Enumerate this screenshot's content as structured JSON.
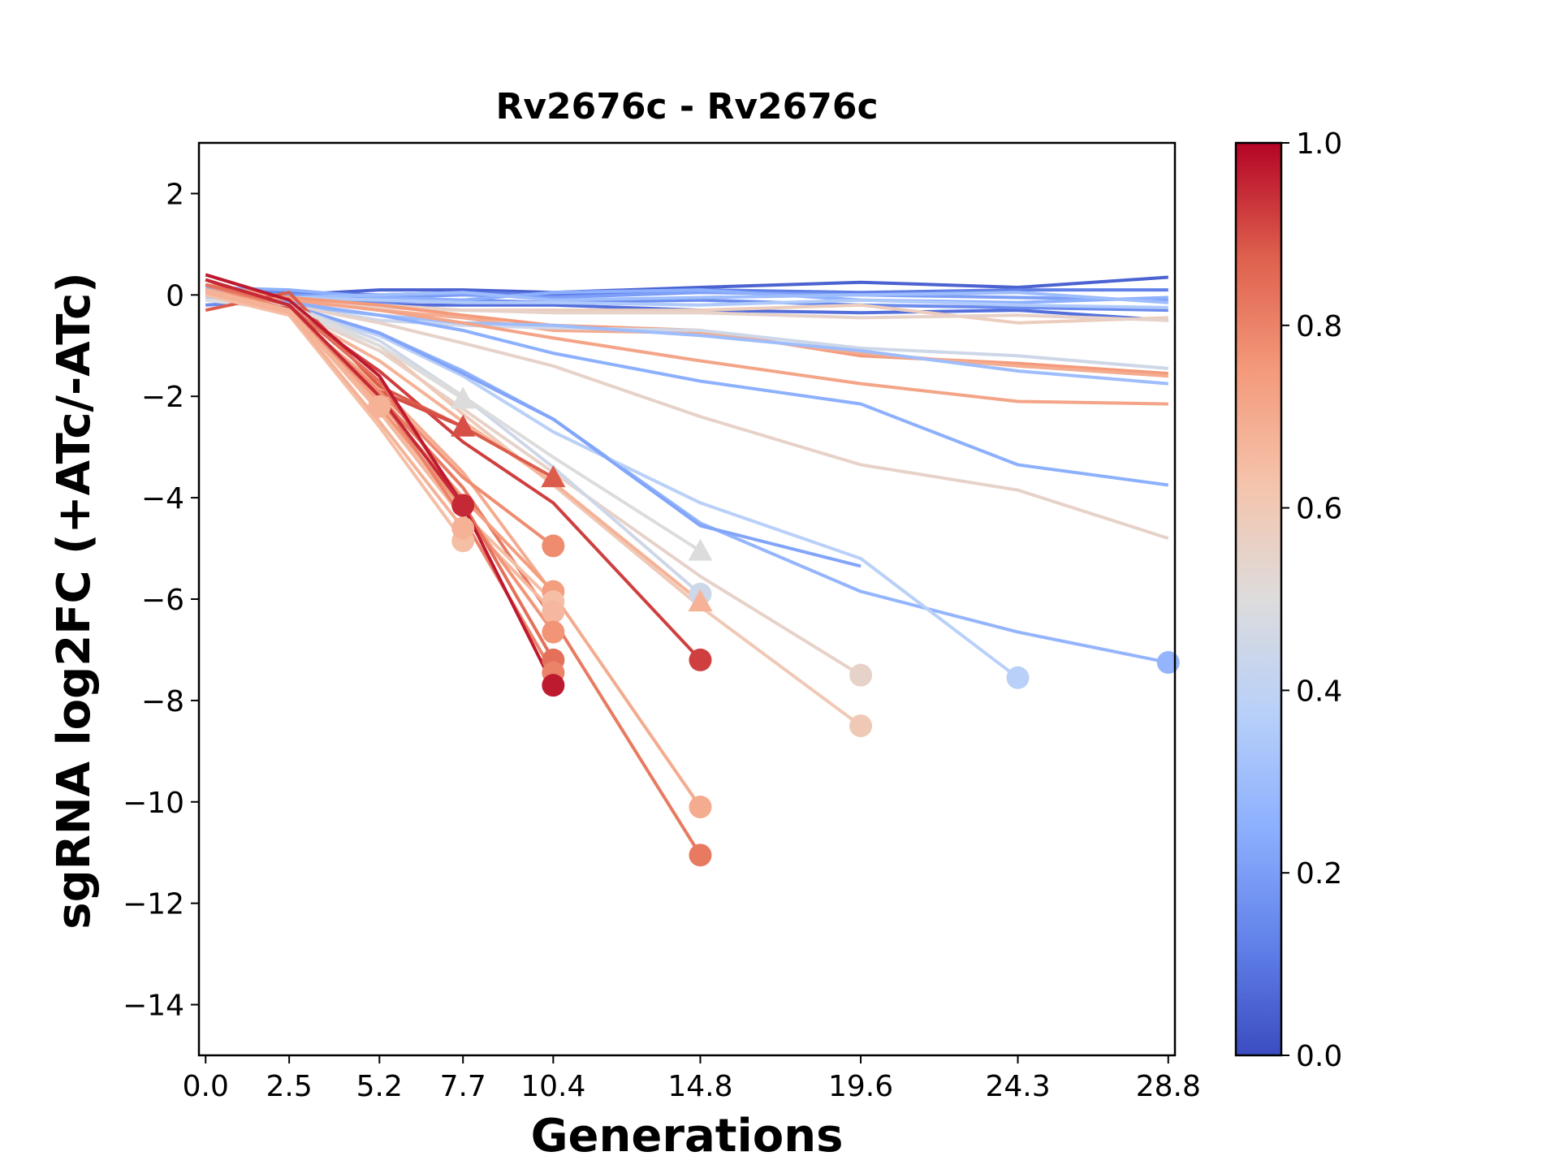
{
  "chart_data": {
    "type": "line",
    "title": "Rv2676c - Rv2676c",
    "xlabel": "Generations",
    "ylabel": "sgRNA log2FC (+ATc/-ATc)",
    "x_ticks": [
      0.0,
      2.5,
      5.2,
      7.7,
      10.4,
      14.8,
      19.6,
      24.3,
      28.8
    ],
    "x_tick_labels": [
      "0.0",
      "2.5",
      "5.2",
      "7.7",
      "10.4",
      "14.8",
      "19.6",
      "24.3",
      "28.8"
    ],
    "xlim": [
      -0.2,
      29.0
    ],
    "y_ticks": [
      2,
      0,
      -2,
      -4,
      -6,
      -8,
      -10,
      -12,
      -14
    ],
    "y_tick_labels": [
      "2",
      "0",
      "−2",
      "−4",
      "−6",
      "−8",
      "−10",
      "−12",
      "−14"
    ],
    "ylim": [
      -15,
      3
    ],
    "grid": false,
    "colorbar": {
      "colormap": "coolwarm",
      "range": [
        0.0,
        1.0
      ],
      "ticks": [
        0.0,
        0.2,
        0.4,
        0.6,
        0.8,
        1.0
      ],
      "tick_labels": [
        "0.0",
        "0.2",
        "0.4",
        "0.6",
        "0.8",
        "1.0"
      ]
    },
    "colormap_stops": [
      "#3b4cc0",
      "#6282ea",
      "#8db0fe",
      "#b8d0f9",
      "#dddcdc",
      "#f5c4ac",
      "#f49a7b",
      "#de604d",
      "#b40426"
    ],
    "series": [
      {
        "c": 0.05,
        "x": [
          0.0,
          2.5,
          5.2,
          7.7,
          10.4,
          14.8,
          19.6,
          24.3,
          28.8
        ],
        "y": [
          0.0,
          0.0,
          0.1,
          0.1,
          0.05,
          0.15,
          0.25,
          0.15,
          0.35
        ],
        "end": "none"
      },
      {
        "c": 0.08,
        "x": [
          0.0,
          2.5,
          5.2,
          7.7,
          10.4,
          14.8,
          19.6,
          24.3,
          28.8
        ],
        "y": [
          -0.1,
          -0.1,
          -0.2,
          -0.2,
          -0.2,
          -0.3,
          -0.35,
          -0.3,
          -0.5
        ],
        "end": "none"
      },
      {
        "c": 0.12,
        "x": [
          0.0,
          2.5,
          5.2,
          7.7,
          10.4,
          14.8,
          19.6,
          24.3,
          28.8
        ],
        "y": [
          0.1,
          0.05,
          0.0,
          0.05,
          0.0,
          0.1,
          0.05,
          0.1,
          0.1
        ],
        "end": "none"
      },
      {
        "c": 0.15,
        "x": [
          0.0,
          2.5,
          5.2,
          7.7,
          10.4,
          14.8,
          19.6,
          24.3,
          28.8
        ],
        "y": [
          -0.2,
          -0.1,
          -0.15,
          -0.1,
          -0.15,
          -0.1,
          -0.2,
          -0.25,
          -0.3
        ],
        "end": "none"
      },
      {
        "c": 0.2,
        "x": [
          0.0,
          2.5,
          5.2,
          7.7,
          10.4,
          14.8,
          19.6,
          24.3,
          28.8
        ],
        "y": [
          0.05,
          0.0,
          -0.05,
          0.0,
          -0.05,
          0.05,
          0.0,
          -0.05,
          -0.1
        ],
        "end": "none"
      },
      {
        "c": 0.25,
        "x": [
          0.0,
          2.5,
          5.2,
          7.7,
          10.4,
          14.8,
          19.6,
          24.3,
          28.8
        ],
        "y": [
          0.15,
          0.1,
          -0.05,
          -0.1,
          0.05,
          0.1,
          -0.1,
          -0.15,
          -0.05
        ],
        "end": "none"
      },
      {
        "c": 0.3,
        "x": [
          0.0,
          2.5,
          5.2,
          7.7,
          10.4,
          14.8,
          19.6,
          24.3,
          28.8
        ],
        "y": [
          0.0,
          -0.05,
          0.0,
          0.05,
          -0.1,
          -0.05,
          0.0,
          0.05,
          -0.15
        ],
        "end": "none"
      },
      {
        "c": 0.35,
        "x": [
          0.0,
          2.5,
          5.2,
          7.7,
          10.4,
          14.8,
          19.6,
          24.3,
          28.8
        ],
        "y": [
          -0.05,
          -0.05,
          -0.1,
          -0.15,
          -0.15,
          -0.2,
          -0.1,
          -0.2,
          -0.25
        ],
        "end": "none"
      },
      {
        "c": 0.58,
        "x": [
          0.0,
          2.5,
          5.2,
          7.7,
          10.4,
          14.8,
          19.6,
          24.3,
          28.8
        ],
        "y": [
          0.05,
          -0.1,
          -0.2,
          -0.3,
          -0.3,
          -0.3,
          -0.2,
          -0.55,
          -0.45
        ],
        "end": "none"
      },
      {
        "c": 0.55,
        "x": [
          0.0,
          2.5,
          5.2,
          7.7,
          10.4,
          14.8,
          19.6,
          24.3,
          28.8
        ],
        "y": [
          0.0,
          -0.15,
          -0.25,
          -0.3,
          -0.35,
          -0.35,
          -0.45,
          -0.4,
          -0.5
        ],
        "end": "none"
      },
      {
        "c": 0.75,
        "x": [
          0.0,
          2.5,
          5.2,
          7.7,
          10.4,
          14.8,
          19.6,
          24.3,
          28.8
        ],
        "y": [
          0.2,
          -0.05,
          -0.2,
          -0.4,
          -0.6,
          -0.7,
          -1.2,
          -1.35,
          -1.55
        ],
        "end": "none"
      },
      {
        "c": 0.7,
        "x": [
          0.0,
          2.5,
          5.2,
          7.7,
          10.4,
          14.8,
          19.6,
          24.3,
          28.8
        ],
        "y": [
          0.1,
          -0.1,
          -0.3,
          -0.45,
          -0.7,
          -0.75,
          -1.15,
          -1.4,
          -1.6
        ],
        "end": "none"
      },
      {
        "c": 0.45,
        "x": [
          0.0,
          2.5,
          5.2,
          7.7,
          10.4,
          14.8,
          19.6,
          24.3,
          28.8
        ],
        "y": [
          -0.1,
          -0.2,
          -0.5,
          -0.6,
          -0.65,
          -0.7,
          -1.05,
          -1.2,
          -1.45
        ],
        "end": "none"
      },
      {
        "c": 0.3,
        "x": [
          0.0,
          2.5,
          5.2,
          7.7,
          10.4,
          14.8,
          19.6,
          24.3,
          28.8
        ],
        "y": [
          0.0,
          -0.2,
          -0.4,
          -0.55,
          -0.6,
          -0.8,
          -1.1,
          -1.5,
          -1.75
        ],
        "end": "none"
      },
      {
        "c": 0.72,
        "x": [
          0.0,
          2.5,
          5.2,
          7.7,
          10.4,
          14.8,
          19.6,
          24.3,
          28.8
        ],
        "y": [
          0.1,
          -0.1,
          -0.3,
          -0.55,
          -0.85,
          -1.3,
          -1.75,
          -2.1,
          -2.15
        ],
        "end": "none"
      },
      {
        "c": 0.25,
        "x": [
          0.0,
          2.5,
          5.2,
          7.7,
          10.4,
          14.8,
          19.6,
          24.3,
          28.8
        ],
        "y": [
          0.0,
          -0.15,
          -0.4,
          -0.7,
          -1.15,
          -1.7,
          -2.15,
          -3.35,
          -3.75
        ],
        "end": "none"
      },
      {
        "c": 0.55,
        "x": [
          0.0,
          2.5,
          5.2,
          7.7,
          10.4,
          14.8,
          19.6,
          24.3,
          28.8
        ],
        "y": [
          0.0,
          -0.2,
          -0.55,
          -0.95,
          -1.4,
          -2.4,
          -3.35,
          -3.85,
          -4.8
        ],
        "end": "none"
      },
      {
        "c": 0.27,
        "x": [
          0.0,
          2.5,
          5.2,
          7.7,
          10.4,
          14.8,
          19.6,
          24.3,
          28.8
        ],
        "y": [
          0.1,
          -0.2,
          -0.75,
          -1.5,
          -2.45,
          -4.5,
          -5.85,
          -6.65,
          -7.25
        ],
        "end": "circle"
      },
      {
        "c": 0.38,
        "x": [
          0.0,
          2.5,
          5.2,
          7.7,
          10.4,
          14.8,
          19.6,
          24.3
        ],
        "y": [
          0.0,
          -0.25,
          -0.8,
          -1.6,
          -2.7,
          -4.1,
          -5.2,
          -7.55
        ],
        "end": "circle"
      },
      {
        "c": 0.22,
        "x": [
          0.0,
          2.5,
          5.2,
          7.7,
          10.4,
          14.8,
          19.6
        ],
        "y": [
          0.05,
          -0.2,
          -0.75,
          -1.55,
          -2.45,
          -4.55,
          -5.35
        ],
        "end": "none"
      },
      {
        "c": 0.55,
        "x": [
          0.0,
          2.5,
          5.2,
          7.7,
          10.4,
          14.8,
          19.6
        ],
        "y": [
          0.0,
          -0.3,
          -1.1,
          -2.25,
          -3.5,
          -5.55,
          -7.5
        ],
        "end": "circle"
      },
      {
        "c": 0.6,
        "x": [
          0.0,
          2.5,
          5.2,
          7.7,
          10.4,
          14.8,
          19.6
        ],
        "y": [
          0.1,
          -0.25,
          -1.0,
          -2.35,
          -3.75,
          -6.15,
          -8.5
        ],
        "end": "circle"
      },
      {
        "c": 0.45,
        "x": [
          0.0,
          2.5,
          5.2,
          7.7,
          10.4,
          14.8
        ],
        "y": [
          0.0,
          -0.2,
          -0.9,
          -2.0,
          -3.4,
          -5.9
        ],
        "end": "circle"
      },
      {
        "c": 0.5,
        "x": [
          0.0,
          2.5,
          5.2,
          7.7,
          10.4,
          14.8
        ],
        "y": [
          -0.1,
          -0.3,
          -1.0,
          -2.0,
          -3.2,
          -5.05
        ],
        "end": "triangle"
      },
      {
        "c": 0.68,
        "x": [
          0.0,
          2.5,
          5.2,
          7.7,
          10.4,
          14.8
        ],
        "y": [
          0.1,
          -0.3,
          -1.3,
          -2.5,
          -3.7,
          -6.05
        ],
        "end": "triangle"
      },
      {
        "c": 0.92,
        "x": [
          0.0,
          2.5,
          5.2,
          7.7,
          10.4,
          14.8
        ],
        "y": [
          0.3,
          -0.25,
          -1.5,
          -2.9,
          -4.1,
          -7.2
        ],
        "end": "circle"
      },
      {
        "c": 0.7,
        "x": [
          0.0,
          2.5,
          5.2,
          7.7,
          10.4,
          14.8
        ],
        "y": [
          0.0,
          -0.35,
          -1.8,
          -3.5,
          -5.9,
          -10.1
        ],
        "end": "circle"
      },
      {
        "c": 0.82,
        "x": [
          0.0,
          2.5,
          5.2,
          7.7,
          10.4,
          14.8
        ],
        "y": [
          0.1,
          -0.35,
          -2.0,
          -3.8,
          -6.4,
          -11.05
        ],
        "end": "circle"
      },
      {
        "c": 0.88,
        "x": [
          0.0,
          2.5,
          5.2,
          7.7,
          10.4
        ],
        "y": [
          -0.3,
          0.05,
          -1.8,
          -2.6,
          -3.6
        ],
        "end": "triangle"
      },
      {
        "c": 0.5,
        "x": [
          0.0,
          2.5,
          5.2,
          7.7
        ],
        "y": [
          0.0,
          -0.2,
          -1.0,
          -2.05
        ],
        "end": "triangle"
      },
      {
        "c": 0.9,
        "x": [
          0.0,
          2.5,
          5.2,
          7.7
        ],
        "y": [
          0.2,
          -0.3,
          -1.9,
          -2.6
        ],
        "end": "triangle"
      },
      {
        "c": 0.78,
        "x": [
          0.0,
          2.5,
          5.2,
          7.7,
          10.4
        ],
        "y": [
          0.2,
          -0.3,
          -1.9,
          -3.6,
          -4.95
        ],
        "end": "circle"
      },
      {
        "c": 0.74,
        "x": [
          0.0,
          2.5,
          5.2,
          7.7,
          10.4
        ],
        "y": [
          0.1,
          -0.3,
          -2.1,
          -4.0,
          -5.85
        ],
        "end": "circle"
      },
      {
        "c": 0.64,
        "x": [
          0.0,
          2.5,
          5.2,
          7.7,
          10.4
        ],
        "y": [
          0.0,
          -0.35,
          -2.2,
          -4.3,
          -6.05
        ],
        "end": "circle"
      },
      {
        "c": 0.66,
        "x": [
          0.0,
          2.5,
          5.2,
          7.7,
          10.4
        ],
        "y": [
          0.05,
          -0.3,
          -2.3,
          -4.4,
          -6.25
        ],
        "end": "circle"
      },
      {
        "c": 0.76,
        "x": [
          0.0,
          2.5,
          5.2,
          7.7,
          10.4
        ],
        "y": [
          0.1,
          -0.3,
          -2.2,
          -4.2,
          -6.65
        ],
        "end": "circle"
      },
      {
        "c": 0.84,
        "x": [
          0.0,
          2.5,
          5.2,
          7.7,
          10.4
        ],
        "y": [
          0.2,
          -0.2,
          -1.7,
          -4.1,
          -7.2
        ],
        "end": "circle"
      },
      {
        "c": 0.8,
        "x": [
          0.0,
          2.5,
          5.2,
          7.7,
          10.4
        ],
        "y": [
          0.1,
          -0.3,
          -2.0,
          -4.4,
          -7.45
        ],
        "end": "circle"
      },
      {
        "c": 0.97,
        "x": [
          0.0,
          2.5,
          5.2,
          7.7,
          10.4
        ],
        "y": [
          0.4,
          -0.1,
          -1.6,
          -4.15,
          -7.7
        ],
        "end": "circle"
      },
      {
        "c": 0.68,
        "x": [
          0.0,
          2.5,
          5.2
        ],
        "y": [
          0.1,
          -0.3,
          -2.2
        ],
        "end": "circle"
      },
      {
        "c": 0.64,
        "x": [
          0.0,
          2.5,
          5.2,
          7.7
        ],
        "y": [
          0.0,
          -0.4,
          -2.6,
          -4.85
        ],
        "end": "circle"
      },
      {
        "c": 0.68,
        "x": [
          0.0,
          2.5,
          5.2,
          7.7
        ],
        "y": [
          0.05,
          -0.35,
          -2.5,
          -4.6
        ],
        "end": "circle"
      },
      {
        "c": 0.95,
        "x": [
          0.0,
          2.5,
          5.2,
          7.7
        ],
        "y": [
          0.3,
          -0.2,
          -2.0,
          -4.15
        ],
        "end": "circle"
      }
    ]
  }
}
